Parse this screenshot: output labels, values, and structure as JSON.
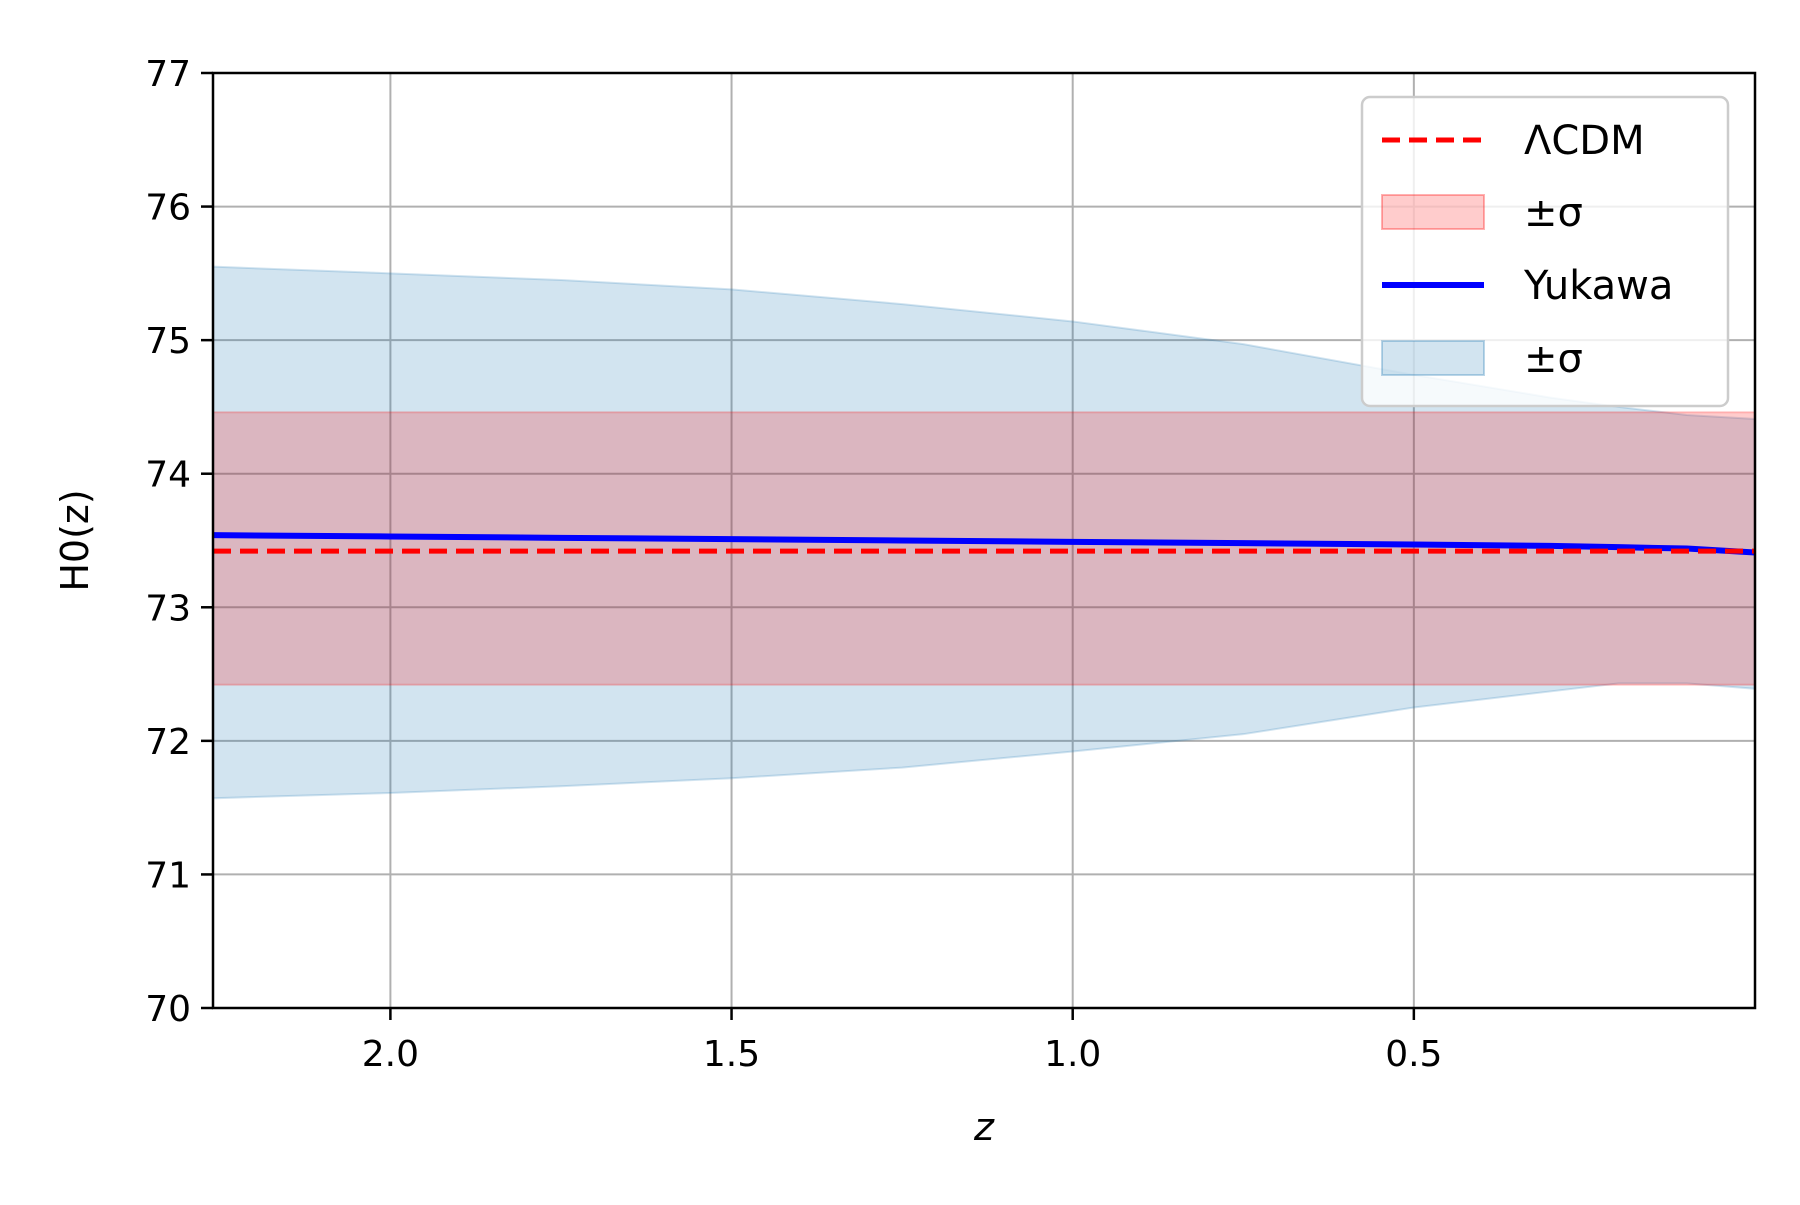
{
  "chart_data": {
    "type": "line",
    "xlabel": "z",
    "ylabel": "H0(z)",
    "xlim": [
      2.26,
      0.0
    ],
    "ylim": [
      70,
      77
    ],
    "x_inverted": true,
    "grid": true,
    "legend_placement": "top-right",
    "x_ticks": [
      2.0,
      1.5,
      1.0,
      0.5
    ],
    "x_tick_labels": [
      "2.0",
      "1.5",
      "1.0",
      "0.5"
    ],
    "y_ticks": [
      70,
      71,
      72,
      73,
      74,
      75,
      76,
      77
    ],
    "y_tick_labels": [
      "70",
      "71",
      "72",
      "73",
      "74",
      "75",
      "76",
      "77"
    ],
    "series": [
      {
        "name": "ΛCDM",
        "style": "dashed",
        "color": "#ff0000",
        "x": [
          2.26,
          0.0
        ],
        "y": [
          73.42,
          73.42
        ]
      },
      {
        "name": "±σ",
        "kind": "band",
        "color": "#ff0000",
        "x": [
          2.26,
          0.0
        ],
        "lower": [
          72.42,
          72.42
        ],
        "upper": [
          74.46,
          74.46
        ]
      },
      {
        "name": "Yukawa",
        "style": "solid",
        "color": "#0000ff",
        "x": [
          2.26,
          2.0,
          1.75,
          1.5,
          1.25,
          1.0,
          0.75,
          0.5,
          0.3,
          0.2,
          0.1,
          0.0
        ],
        "y": [
          73.54,
          73.53,
          73.52,
          73.51,
          73.5,
          73.49,
          73.48,
          73.47,
          73.46,
          73.45,
          73.44,
          73.41
        ]
      },
      {
        "name": "±σ",
        "kind": "band",
        "color": "#1f77b4",
        "x": [
          2.26,
          2.0,
          1.75,
          1.5,
          1.25,
          1.0,
          0.75,
          0.5,
          0.3,
          0.2,
          0.1,
          0.0
        ],
        "lower": [
          71.57,
          71.61,
          71.66,
          71.72,
          71.8,
          71.92,
          72.05,
          72.25,
          72.37,
          72.43,
          72.43,
          72.39
        ],
        "upper": [
          75.55,
          75.5,
          75.45,
          75.38,
          75.27,
          75.14,
          74.97,
          74.74,
          74.57,
          74.5,
          74.44,
          74.41
        ]
      }
    ]
  }
}
